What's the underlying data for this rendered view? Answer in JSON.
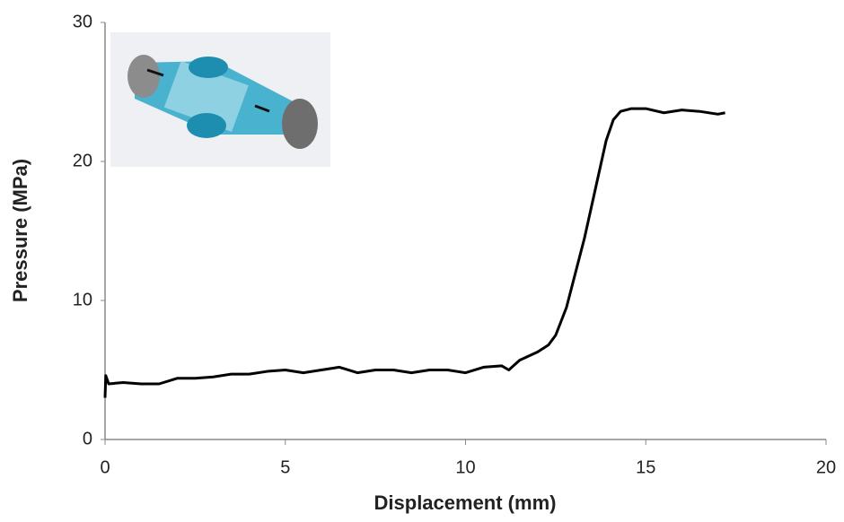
{
  "chart_data": {
    "type": "line",
    "x_label": "Displacement (mm)",
    "y_label": "Pressure (MPa)",
    "x": [
      0,
      0.02,
      0.1,
      0.5,
      1,
      1.5,
      2,
      2.5,
      3,
      3.5,
      4,
      4.5,
      5,
      5.5,
      6,
      6.5,
      7,
      7.5,
      8,
      8.5,
      9,
      9.5,
      10,
      10.5,
      11,
      11.2,
      11.5,
      12,
      12.3,
      12.5,
      12.8,
      13,
      13.3,
      13.6,
      13.9,
      14.1,
      14.3,
      14.6,
      15,
      15.5,
      16,
      16.5,
      17,
      17.2
    ],
    "values": [
      3.0,
      4.6,
      4.0,
      4.1,
      4.0,
      4.0,
      4.4,
      4.4,
      4.5,
      4.7,
      4.7,
      4.9,
      5.0,
      4.8,
      5.0,
      5.2,
      4.8,
      5.0,
      5.0,
      4.8,
      5.0,
      5.0,
      4.8,
      5.2,
      5.3,
      5.0,
      5.7,
      6.3,
      6.8,
      7.5,
      9.5,
      11.5,
      14.5,
      18,
      21.5,
      23.0,
      23.6,
      23.8,
      23.8,
      23.5,
      23.7,
      23.6,
      23.4,
      23.5
    ],
    "color": "#000000",
    "xlim": [
      0,
      20
    ],
    "xticks": [
      0,
      5,
      10,
      15,
      20
    ],
    "ylim": [
      0,
      30
    ],
    "yticks": [
      0,
      10,
      20,
      30
    ],
    "grid": false
  }
}
